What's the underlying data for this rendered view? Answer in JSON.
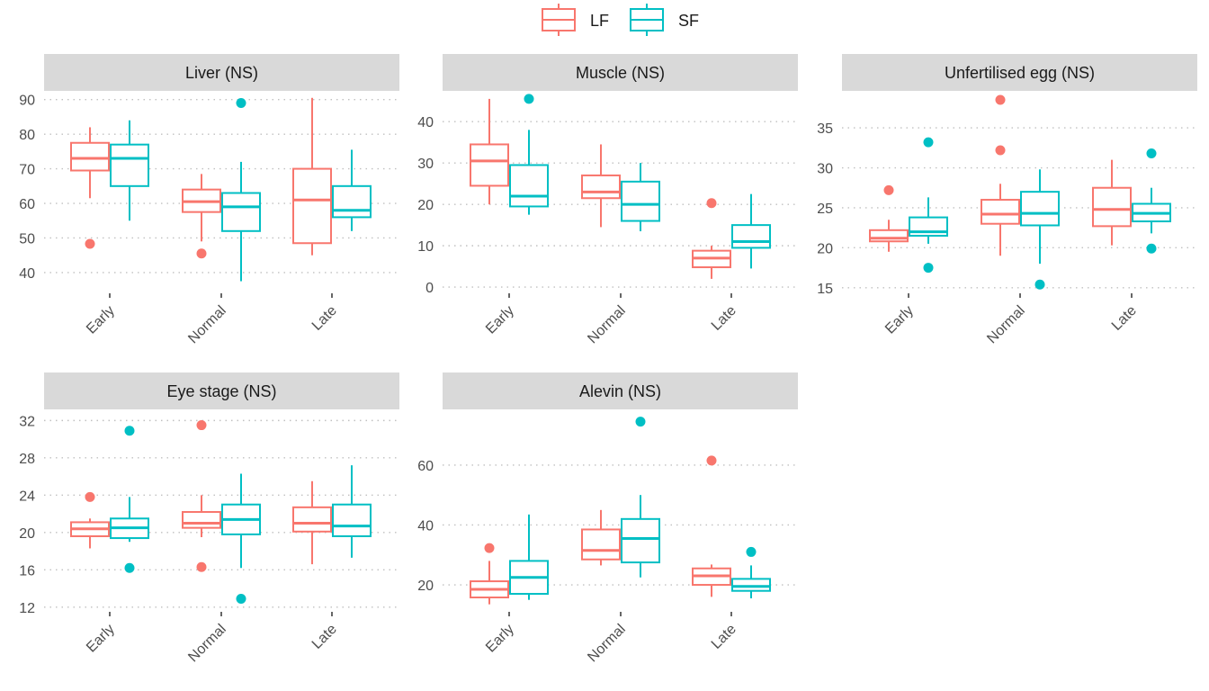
{
  "legend": {
    "items": [
      {
        "name": "LF",
        "color": "#F8766D"
      },
      {
        "name": "SF",
        "color": "#00BFC4"
      }
    ]
  },
  "chart_data": [
    {
      "type": "boxplot",
      "title": "Liver (NS)",
      "categories": [
        "Early",
        "Normal",
        "Late"
      ],
      "yticks": [
        40,
        50,
        60,
        70,
        80,
        90
      ],
      "ylim": [
        34,
        92
      ],
      "grid": "dotted-horizontal",
      "series": [
        {
          "name": "LF",
          "boxes": [
            {
              "min": 61.5,
              "q1": 69.5,
              "median": 73.0,
              "q3": 77.5,
              "max": 82.0,
              "outliers": [
                48.3
              ]
            },
            {
              "min": 49.0,
              "q1": 57.5,
              "median": 60.5,
              "q3": 64.0,
              "max": 68.5,
              "outliers": [
                45.5
              ]
            },
            {
              "min": 45.0,
              "q1": 48.5,
              "median": 61.0,
              "q3": 70.0,
              "max": 90.5,
              "outliers": []
            }
          ]
        },
        {
          "name": "SF",
          "boxes": [
            {
              "min": 55.0,
              "q1": 65.0,
              "median": 73.0,
              "q3": 77.0,
              "max": 84.0,
              "outliers": []
            },
            {
              "min": 37.5,
              "q1": 52.0,
              "median": 59.0,
              "q3": 63.0,
              "max": 72.0,
              "outliers": [
                89.0
              ]
            },
            {
              "min": 52.0,
              "q1": 56.0,
              "median": 58.0,
              "q3": 65.0,
              "max": 75.5,
              "outliers": []
            }
          ]
        }
      ]
    },
    {
      "type": "boxplot",
      "title": "Muscle (NS)",
      "categories": [
        "Early",
        "Normal",
        "Late"
      ],
      "yticks": [
        0,
        10,
        20,
        30,
        40
      ],
      "ylim": [
        -1.5,
        47
      ],
      "grid": "dotted-horizontal",
      "series": [
        {
          "name": "LF",
          "boxes": [
            {
              "min": 20.0,
              "q1": 24.5,
              "median": 30.5,
              "q3": 34.5,
              "max": 45.5,
              "outliers": []
            },
            {
              "min": 14.5,
              "q1": 21.5,
              "median": 23.0,
              "q3": 27.0,
              "max": 34.5,
              "outliers": []
            },
            {
              "min": 2.0,
              "q1": 4.8,
              "median": 7.0,
              "q3": 8.8,
              "max": 10.0,
              "outliers": [
                20.3
              ]
            }
          ]
        },
        {
          "name": "SF",
          "boxes": [
            {
              "min": 17.5,
              "q1": 19.5,
              "median": 22.0,
              "q3": 29.5,
              "max": 38.0,
              "outliers": [
                45.5
              ]
            },
            {
              "min": 13.5,
              "q1": 16.0,
              "median": 20.0,
              "q3": 25.5,
              "max": 30.0,
              "outliers": []
            },
            {
              "min": 4.5,
              "q1": 9.5,
              "median": 11.0,
              "q3": 15.0,
              "max": 22.5,
              "outliers": []
            }
          ]
        }
      ]
    },
    {
      "type": "boxplot",
      "title": "Unfertilised egg (NS)",
      "categories": [
        "Early",
        "Normal",
        "Late"
      ],
      "yticks": [
        15,
        20,
        25,
        30,
        35
      ],
      "ylim": [
        14.3,
        39.4
      ],
      "grid": "dotted-horizontal",
      "series": [
        {
          "name": "LF",
          "boxes": [
            {
              "min": 19.5,
              "q1": 20.8,
              "median": 21.2,
              "q3": 22.2,
              "max": 23.5,
              "outliers": [
                27.2
              ]
            },
            {
              "min": 19.0,
              "q1": 23.0,
              "median": 24.2,
              "q3": 26.0,
              "max": 28.0,
              "outliers": [
                32.2,
                38.5
              ]
            },
            {
              "min": 20.3,
              "q1": 22.7,
              "median": 24.8,
              "q3": 27.5,
              "max": 31.0,
              "outliers": []
            }
          ]
        },
        {
          "name": "SF",
          "boxes": [
            {
              "min": 20.5,
              "q1": 21.5,
              "median": 22.0,
              "q3": 23.8,
              "max": 26.3,
              "outliers": [
                17.5,
                33.2
              ]
            },
            {
              "min": 18.0,
              "q1": 22.8,
              "median": 24.3,
              "q3": 27.0,
              "max": 29.8,
              "outliers": [
                15.4
              ]
            },
            {
              "min": 21.8,
              "q1": 23.3,
              "median": 24.3,
              "q3": 25.5,
              "max": 27.5,
              "outliers": [
                19.9,
                31.8
              ]
            }
          ]
        }
      ]
    },
    {
      "type": "boxplot",
      "title": "Eye stage (NS)",
      "categories": [
        "Early",
        "Normal",
        "Late"
      ],
      "yticks": [
        12,
        16,
        20,
        24,
        28,
        32
      ],
      "ylim": [
        11.5,
        33
      ],
      "grid": "dotted-horizontal",
      "series": [
        {
          "name": "LF",
          "boxes": [
            {
              "min": 18.3,
              "q1": 19.6,
              "median": 20.4,
              "q3": 21.1,
              "max": 21.5,
              "outliers": [
                23.8
              ]
            },
            {
              "min": 19.5,
              "q1": 20.5,
              "median": 21.0,
              "q3": 22.2,
              "max": 24.0,
              "outliers": [
                16.3,
                31.5
              ]
            },
            {
              "min": 16.6,
              "q1": 20.1,
              "median": 21.0,
              "q3": 22.7,
              "max": 25.5,
              "outliers": []
            }
          ]
        },
        {
          "name": "SF",
          "boxes": [
            {
              "min": 19.0,
              "q1": 19.4,
              "median": 20.5,
              "q3": 21.5,
              "max": 23.8,
              "outliers": [
                16.2,
                30.9
              ]
            },
            {
              "min": 16.2,
              "q1": 19.8,
              "median": 21.4,
              "q3": 23.0,
              "max": 26.3,
              "outliers": [
                12.9
              ]
            },
            {
              "min": 17.3,
              "q1": 19.6,
              "median": 20.7,
              "q3": 23.0,
              "max": 27.2,
              "outliers": []
            }
          ]
        }
      ]
    },
    {
      "type": "boxplot",
      "title": "Alevin (NS)",
      "categories": [
        "Early",
        "Normal",
        "Late"
      ],
      "yticks": [
        20,
        40,
        60
      ],
      "ylim": [
        11,
        78
      ],
      "grid": "dotted-horizontal",
      "series": [
        {
          "name": "LF",
          "boxes": [
            {
              "min": 13.5,
              "q1": 15.8,
              "median": 18.5,
              "q3": 21.2,
              "max": 28.0,
              "outliers": [
                32.3
              ]
            },
            {
              "min": 26.5,
              "q1": 28.5,
              "median": 31.5,
              "q3": 38.5,
              "max": 45.0,
              "outliers": []
            },
            {
              "min": 16.0,
              "q1": 20.0,
              "median": 23.0,
              "q3": 25.5,
              "max": 26.8,
              "outliers": [
                61.5
              ]
            }
          ]
        },
        {
          "name": "SF",
          "boxes": [
            {
              "min": 15.0,
              "q1": 17.0,
              "median": 22.5,
              "q3": 28.0,
              "max": 43.5,
              "outliers": []
            },
            {
              "min": 22.5,
              "q1": 27.5,
              "median": 35.5,
              "q3": 42.0,
              "max": 50.0,
              "outliers": [
                74.5
              ]
            },
            {
              "min": 15.5,
              "q1": 18.0,
              "median": 19.5,
              "q3": 22.0,
              "max": 26.5,
              "outliers": [
                31.0
              ]
            }
          ]
        }
      ]
    }
  ]
}
